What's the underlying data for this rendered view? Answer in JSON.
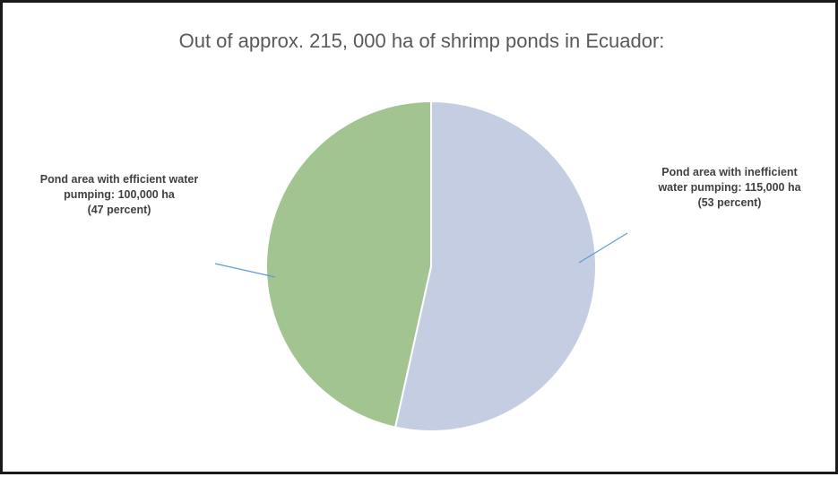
{
  "chart_data": {
    "type": "pie",
    "title": "Out of approx. 215, 000 ha of shrimp ponds in Ecuador:",
    "slices": [
      {
        "label_lines": [
          "Pond area with inefficient",
          "water pumping: 115,000 ha",
          "(53 percent)"
        ],
        "value": 115000,
        "percent": 53,
        "color": "#c5cde3"
      },
      {
        "label_lines": [
          "Pond area with efficient water",
          "pumping: 100,000 ha",
          "(47 percent)"
        ],
        "value": 100000,
        "percent": 47,
        "color": "#a2c491"
      }
    ],
    "legend": "none"
  }
}
